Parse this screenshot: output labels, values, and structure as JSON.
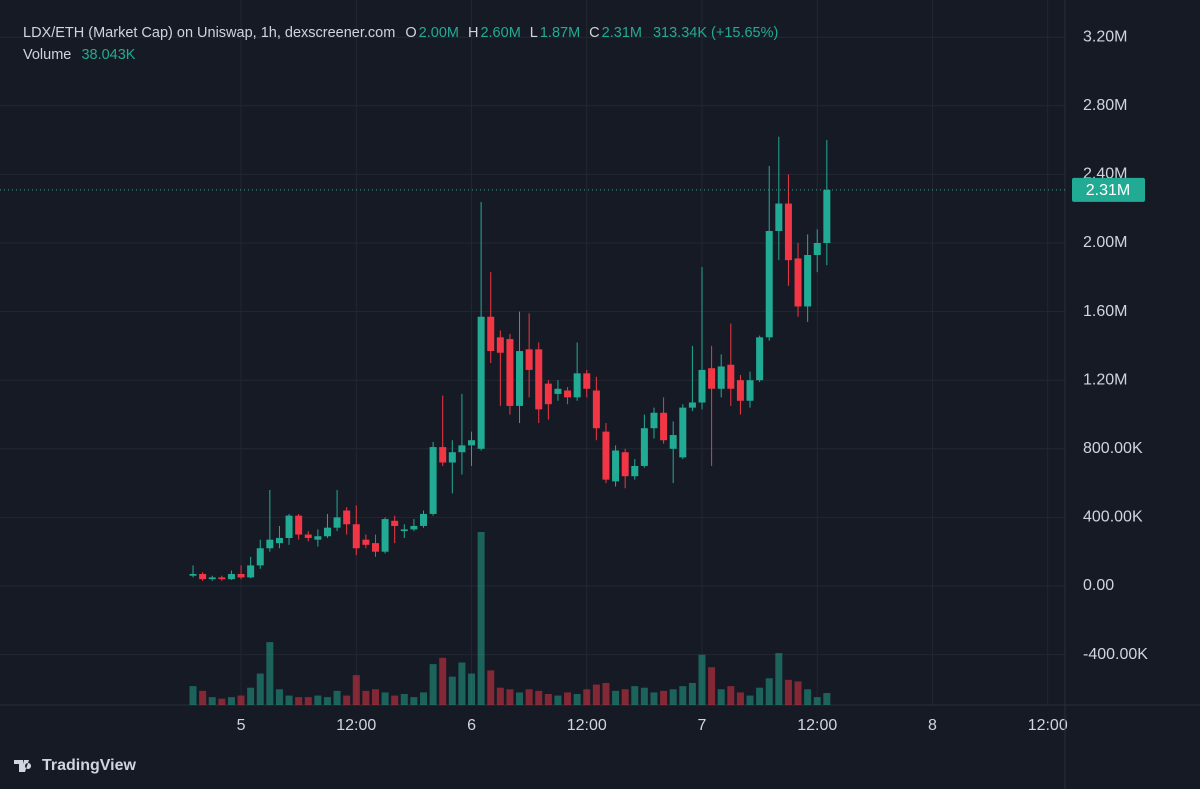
{
  "chart_data": {
    "type": "candlestick",
    "title": "LDX/ETH (Market Cap) on Uniswap, 1h, dexscreener.com",
    "ohlc_legend": [
      {
        "key": "O",
        "label": "2.00M"
      },
      {
        "key": "H",
        "label": "2.60M"
      },
      {
        "key": "L",
        "label": "1.87M"
      },
      {
        "key": "C",
        "label": "2.31M"
      }
    ],
    "change_label": "313.34K (+15.65%)",
    "volume_name": "Volume",
    "volume_label": "38.043K",
    "x": [
      -5,
      -4,
      -3,
      -2,
      -1,
      0,
      1,
      2,
      3,
      4,
      5,
      6,
      7,
      8,
      9,
      10,
      11,
      12,
      13,
      14,
      15,
      16,
      17,
      18,
      19,
      20,
      21,
      22,
      23,
      24,
      25,
      26,
      27,
      28,
      29,
      30,
      31,
      32,
      33,
      34,
      35,
      36,
      37,
      38,
      39,
      40,
      41,
      42,
      43,
      44,
      45,
      46,
      47,
      48,
      49,
      50,
      51,
      52,
      53,
      54,
      55,
      56,
      57,
      58,
      59,
      60,
      61
    ],
    "open": [
      60000,
      70000,
      40000,
      50000,
      40000,
      70000,
      50000,
      120000,
      220000,
      250000,
      280000,
      410000,
      300000,
      270000,
      290000,
      340000,
      440000,
      360000,
      270000,
      250000,
      200000,
      380000,
      320000,
      330000,
      350000,
      420000,
      810000,
      720000,
      780000,
      820000,
      800000,
      1570000,
      1450000,
      1440000,
      1050000,
      1380000,
      1380000,
      1180000,
      1120000,
      1140000,
      1100000,
      1240000,
      1140000,
      900000,
      610000,
      780000,
      640000,
      700000,
      920000,
      1010000,
      800000,
      750000,
      1040000,
      1070000,
      1270000,
      1150000,
      1290000,
      1200000,
      1080000,
      1200000,
      1450000,
      2070000,
      2230000,
      1910000,
      1630000,
      1930000,
      2000000
    ],
    "high": [
      120000,
      80000,
      60000,
      60000,
      90000,
      120000,
      170000,
      270000,
      560000,
      350000,
      420000,
      420000,
      320000,
      330000,
      420000,
      560000,
      460000,
      470000,
      300000,
      300000,
      400000,
      410000,
      360000,
      390000,
      440000,
      840000,
      1110000,
      850000,
      1120000,
      900000,
      2240000,
      1830000,
      1490000,
      1470000,
      1600000,
      1590000,
      1420000,
      1200000,
      1200000,
      1160000,
      1420000,
      1260000,
      1220000,
      950000,
      820000,
      800000,
      740000,
      1000000,
      1040000,
      1100000,
      960000,
      1060000,
      1400000,
      1860000,
      1400000,
      1350000,
      1530000,
      1230000,
      1250000,
      1460000,
      2450000,
      2620000,
      2400000,
      2000000,
      2050000,
      2080000,
      2600000
    ],
    "low": [
      50000,
      30000,
      30000,
      30000,
      35000,
      40000,
      45000,
      100000,
      200000,
      220000,
      240000,
      270000,
      260000,
      230000,
      280000,
      320000,
      300000,
      180000,
      220000,
      170000,
      190000,
      250000,
      280000,
      320000,
      340000,
      410000,
      700000,
      540000,
      650000,
      700000,
      790000,
      1300000,
      1050000,
      1000000,
      950000,
      1100000,
      950000,
      970000,
      1080000,
      1060000,
      1080000,
      1100000,
      850000,
      600000,
      580000,
      570000,
      620000,
      690000,
      860000,
      830000,
      600000,
      740000,
      1020000,
      1030000,
      700000,
      1100000,
      1050000,
      1000000,
      1040000,
      1190000,
      1430000,
      1900000,
      1750000,
      1570000,
      1540000,
      1830000,
      1870000
    ],
    "close": [
      70000,
      40000,
      50000,
      40000,
      70000,
      50000,
      120000,
      220000,
      270000,
      280000,
      410000,
      300000,
      280000,
      290000,
      340000,
      400000,
      360000,
      220000,
      240000,
      200000,
      390000,
      350000,
      330000,
      350000,
      420000,
      810000,
      720000,
      780000,
      820000,
      850000,
      1570000,
      1370000,
      1360000,
      1050000,
      1370000,
      1260000,
      1030000,
      1060000,
      1150000,
      1100000,
      1240000,
      1150000,
      920000,
      620000,
      790000,
      640000,
      700000,
      920000,
      1010000,
      850000,
      880000,
      1040000,
      1070000,
      1260000,
      1150000,
      1280000,
      1150000,
      1080000,
      1200000,
      1450000,
      2070000,
      2230000,
      1900000,
      1630000,
      1930000,
      2000000,
      2310000
    ],
    "volume": [
      60000,
      45000,
      25000,
      20000,
      25000,
      30000,
      55000,
      100000,
      200000,
      50000,
      30000,
      25000,
      25000,
      30000,
      25000,
      45000,
      30000,
      95000,
      45000,
      50000,
      40000,
      30000,
      35000,
      25000,
      40000,
      130000,
      150000,
      90000,
      135000,
      100000,
      550000,
      110000,
      55000,
      50000,
      40000,
      50000,
      45000,
      35000,
      30000,
      40000,
      35000,
      50000,
      65000,
      70000,
      45000,
      50000,
      60000,
      55000,
      40000,
      45000,
      50000,
      60000,
      70000,
      160000,
      120000,
      50000,
      60000,
      40000,
      30000,
      55000,
      85000,
      165000,
      80000,
      75000,
      50000,
      25000,
      38043
    ],
    "up_color": "#22ab94",
    "down_color": "#f23645",
    "xlim": [
      -25.1,
      85.8
    ],
    "xticks": [
      {
        "value": 0,
        "label": "5"
      },
      {
        "value": 12,
        "label": "12:00"
      },
      {
        "value": 24,
        "label": "6"
      },
      {
        "value": 36,
        "label": "12:00"
      },
      {
        "value": 48,
        "label": "7"
      },
      {
        "value": 60,
        "label": "12:00"
      },
      {
        "value": 72,
        "label": "8"
      },
      {
        "value": 84,
        "label": "12:00"
      }
    ],
    "ylim": [
      -694000,
      3417000
    ],
    "yticks": [
      {
        "value": -400000,
        "label": "-400.00K"
      },
      {
        "value": 0,
        "label": "0.00"
      },
      {
        "value": 400000,
        "label": "400.00K"
      },
      {
        "value": 800000,
        "label": "800.00K"
      },
      {
        "value": 1200000,
        "label": "1.20M"
      },
      {
        "value": 1600000,
        "label": "1.60M"
      },
      {
        "value": 2000000,
        "label": "2.00M"
      },
      {
        "value": 2400000,
        "label": "2.40M"
      },
      {
        "value": 2800000,
        "label": "2.80M"
      },
      {
        "value": 3200000,
        "label": "3.20M"
      }
    ],
    "grid": true,
    "last_price": {
      "value": 2310000,
      "label": "2.31M"
    }
  },
  "branding": "TradingView"
}
